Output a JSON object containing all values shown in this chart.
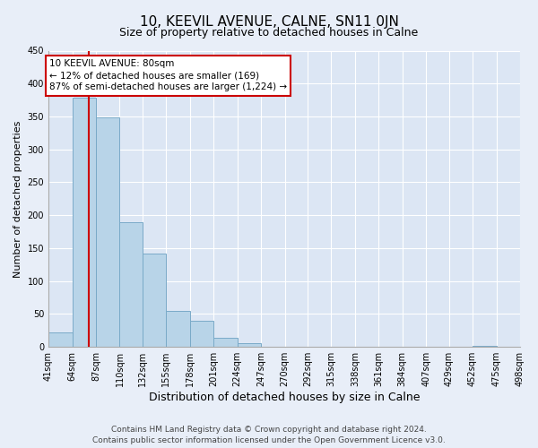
{
  "title": "10, KEEVIL AVENUE, CALNE, SN11 0JN",
  "subtitle": "Size of property relative to detached houses in Calne",
  "xlabel": "Distribution of detached houses by size in Calne",
  "ylabel": "Number of detached properties",
  "bar_edges": [
    41,
    64,
    87,
    110,
    132,
    155,
    178,
    201,
    224,
    247,
    270,
    292,
    315,
    338,
    361,
    384,
    407,
    429,
    452,
    475,
    498
  ],
  "bar_heights": [
    22,
    378,
    348,
    190,
    142,
    55,
    40,
    14,
    6,
    0,
    0,
    0,
    0,
    0,
    0,
    0,
    0,
    0,
    2,
    0,
    2
  ],
  "bar_color": "#b8d4e8",
  "bar_edge_color": "#7aaac8",
  "property_size": 80,
  "property_line_color": "#cc0000",
  "annotation_text": "10 KEEVIL AVENUE: 80sqm\n← 12% of detached houses are smaller (169)\n87% of semi-detached houses are larger (1,224) →",
  "annotation_box_color": "#ffffff",
  "annotation_box_edge": "#cc0000",
  "ylim": [
    0,
    450
  ],
  "tick_labels": [
    "41sqm",
    "64sqm",
    "87sqm",
    "110sqm",
    "132sqm",
    "155sqm",
    "178sqm",
    "201sqm",
    "224sqm",
    "247sqm",
    "270sqm",
    "292sqm",
    "315sqm",
    "338sqm",
    "361sqm",
    "384sqm",
    "407sqm",
    "429sqm",
    "452sqm",
    "475sqm",
    "498sqm"
  ],
  "footer_text": "Contains HM Land Registry data © Crown copyright and database right 2024.\nContains public sector information licensed under the Open Government Licence v3.0.",
  "bg_color": "#e8eef8",
  "plot_bg_color": "#dce6f4",
  "grid_color": "#ffffff",
  "yticks": [
    0,
    50,
    100,
    150,
    200,
    250,
    300,
    350,
    400,
    450
  ],
  "title_fontsize": 11,
  "subtitle_fontsize": 9,
  "xlabel_fontsize": 9,
  "ylabel_fontsize": 8,
  "tick_fontsize": 7,
  "footer_fontsize": 6.5
}
